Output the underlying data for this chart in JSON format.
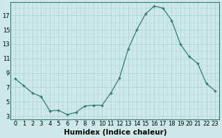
{
  "xlabel": "Humidex (Indice chaleur)",
  "x": [
    0,
    1,
    2,
    3,
    4,
    5,
    6,
    7,
    8,
    9,
    10,
    11,
    12,
    13,
    14,
    15,
    16,
    17,
    18,
    19,
    20,
    21,
    22,
    23
  ],
  "y": [
    8.2,
    7.2,
    6.2,
    5.7,
    3.7,
    3.8,
    3.2,
    3.5,
    4.4,
    4.5,
    4.5,
    6.2,
    8.3,
    12.3,
    15.0,
    17.2,
    18.3,
    18.0,
    16.3,
    13.0,
    11.3,
    10.3,
    7.5,
    6.5
  ],
  "line_color": "#2e7d72",
  "marker_color": "#2e7d72",
  "bg_color": "#cce8e8",
  "grid_color": "#b0d0d0",
  "ylim": [
    2.5,
    18.8
  ],
  "xlim": [
    -0.5,
    23.5
  ],
  "yticks": [
    3,
    5,
    7,
    9,
    11,
    13,
    15,
    17
  ],
  "xticks": [
    0,
    1,
    2,
    3,
    4,
    5,
    6,
    7,
    8,
    9,
    10,
    11,
    12,
    13,
    14,
    15,
    16,
    17,
    18,
    19,
    20,
    21,
    22,
    23
  ],
  "xtick_labels": [
    "0",
    "1",
    "2",
    "3",
    "4",
    "5",
    "6",
    "7",
    "8",
    "9",
    "10",
    "11",
    "12",
    "13",
    "14",
    "15",
    "16",
    "17",
    "18",
    "19",
    "20",
    "21",
    "22",
    "23"
  ],
  "fontsize_ticks": 6,
  "fontsize_label": 7.5
}
